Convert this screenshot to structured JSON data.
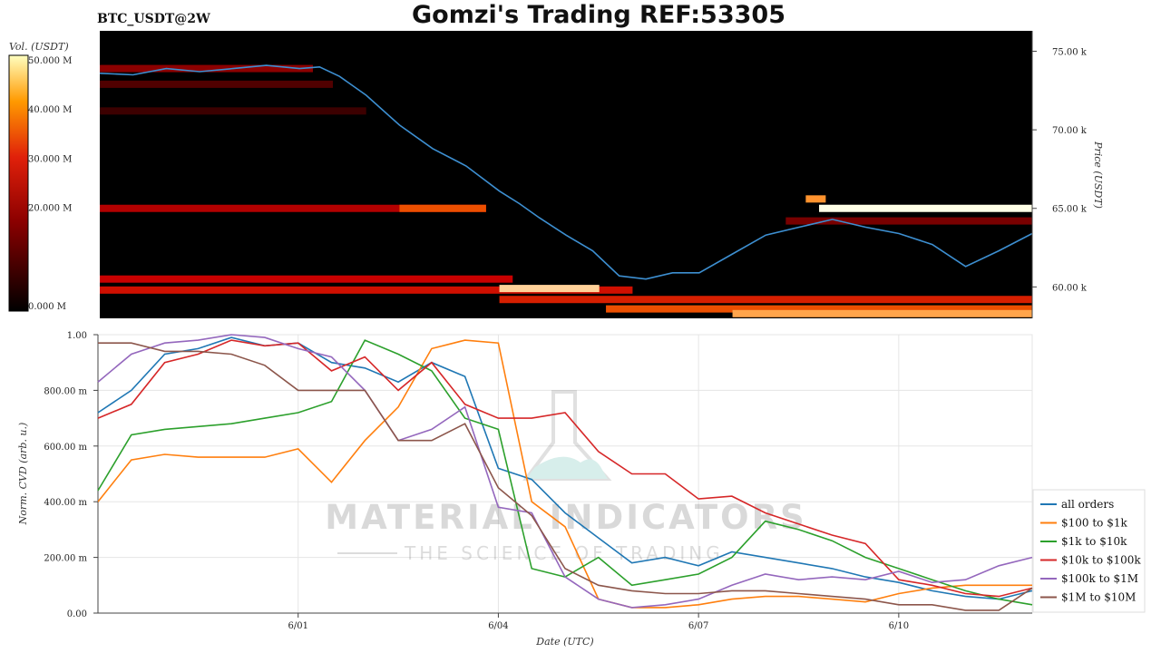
{
  "header": {
    "pair": "BTC_USDT@2W",
    "title": "Gomzi's Trading REF:53305"
  },
  "watermark": {
    "line1": "MATERIAL INDICATORS",
    "line2": "THE SCIENCE OF TRADING"
  },
  "colors": {
    "all_orders": "#1f77b4",
    "r100_1k": "#ff7f0e",
    "r1k_10k": "#2ca02c",
    "r10k_100k": "#d62728",
    "r100k_1m": "#9467bd",
    "r1m_10m": "#8c564b"
  },
  "chart_data": [
    {
      "type": "heatmap",
      "title": "Gomzi's Trading REF:53305",
      "colorbar_label": "Vol. (USDT)",
      "colorbar_ticks": [
        "0.000 M",
        "20.000 M",
        "30.000 M",
        "40.000 M",
        "50.000 M"
      ],
      "colorbar_range": [
        0,
        50
      ],
      "ylabel": "Price (USDT)",
      "yticks": [
        "60.00 k",
        "65.00 k",
        "70.00 k",
        "75.00 k"
      ],
      "ylim": [
        58000,
        76300
      ],
      "x_range_days": [
        0,
        14
      ],
      "price_series": {
        "x": [
          0,
          0.5,
          1,
          1.5,
          2,
          2.5,
          3,
          3.3,
          3.6,
          4,
          4.5,
          5,
          5.5,
          6,
          6.3,
          6.6,
          7,
          7.4,
          7.8,
          8.2,
          8.6,
          9,
          9.5,
          10,
          10.5,
          11,
          11.5,
          12,
          12.5,
          13,
          13.5,
          14
        ],
        "y": [
          73600,
          73500,
          73900,
          73700,
          73900,
          74100,
          73900,
          74000,
          73400,
          72200,
          70300,
          68800,
          67700,
          66100,
          65300,
          64400,
          63300,
          62300,
          60700,
          60500,
          60900,
          60900,
          62100,
          63300,
          63800,
          64300,
          63800,
          63400,
          62700,
          61300,
          62300,
          63400
        ]
      },
      "liquidity_bands": [
        {
          "price": 73900,
          "from": 0.0,
          "to": 3.2,
          "level": 14
        },
        {
          "price": 72900,
          "from": 0.0,
          "to": 3.5,
          "level": 8
        },
        {
          "price": 71200,
          "from": 0.0,
          "to": 4.0,
          "level": 6
        },
        {
          "price": 65000,
          "from": 0.0,
          "to": 5.8,
          "level": 18
        },
        {
          "price": 65000,
          "from": 4.5,
          "to": 5.8,
          "level": 30
        },
        {
          "price": 65600,
          "from": 10.6,
          "to": 10.9,
          "level": 38
        },
        {
          "price": 65000,
          "from": 10.8,
          "to": 14.0,
          "level": 50
        },
        {
          "price": 64200,
          "from": 10.3,
          "to": 14.0,
          "level": 12
        },
        {
          "price": 60500,
          "from": 0.0,
          "to": 6.2,
          "level": 20
        },
        {
          "price": 59800,
          "from": 0.0,
          "to": 8.0,
          "level": 22
        },
        {
          "price": 59900,
          "from": 6.0,
          "to": 7.5,
          "level": 45
        },
        {
          "price": 59200,
          "from": 6.0,
          "to": 14.0,
          "level": 24
        },
        {
          "price": 58600,
          "from": 7.6,
          "to": 14.0,
          "level": 30
        },
        {
          "price": 58300,
          "from": 9.5,
          "to": 14.0,
          "level": 40
        }
      ]
    },
    {
      "type": "line",
      "xlabel": "Date (UTC)",
      "ylabel": "Norm. CVD (arb. u.)",
      "xlim": [
        0,
        14
      ],
      "ylim": [
        0,
        1
      ],
      "xticks": [
        {
          "value": 3,
          "label": "6/01"
        },
        {
          "value": 6,
          "label": "6/04"
        },
        {
          "value": 9,
          "label": "6/07"
        },
        {
          "value": 12,
          "label": "6/10"
        }
      ],
      "yticks": [
        {
          "value": 0,
          "label": "0.00"
        },
        {
          "value": 0.2,
          "label": "200.00 m"
        },
        {
          "value": 0.4,
          "label": "400.00 m"
        },
        {
          "value": 0.6,
          "label": "600.00 m"
        },
        {
          "value": 0.8,
          "label": "800.00 m"
        },
        {
          "value": 1.0,
          "label": "1.00"
        }
      ],
      "grid": true,
      "legend_position": "right",
      "x": [
        0,
        0.5,
        1,
        1.5,
        2,
        2.5,
        3,
        3.5,
        4,
        4.5,
        5,
        5.5,
        6,
        6.5,
        7,
        7.5,
        8,
        8.5,
        9,
        9.5,
        10,
        10.5,
        11,
        11.5,
        12,
        12.5,
        13,
        13.5,
        14
      ],
      "series": [
        {
          "name": "all orders",
          "color_key": "all_orders",
          "values": [
            0.72,
            0.8,
            0.93,
            0.95,
            0.99,
            0.96,
            0.97,
            0.9,
            0.88,
            0.83,
            0.9,
            0.85,
            0.52,
            0.48,
            0.36,
            0.27,
            0.18,
            0.2,
            0.17,
            0.22,
            0.2,
            0.18,
            0.16,
            0.13,
            0.11,
            0.08,
            0.06,
            0.05,
            0.08
          ]
        },
        {
          "name": "$100 to $1k",
          "color_key": "r100_1k",
          "values": [
            0.4,
            0.55,
            0.57,
            0.56,
            0.56,
            0.56,
            0.59,
            0.47,
            0.62,
            0.74,
            0.95,
            0.98,
            0.97,
            0.4,
            0.31,
            0.05,
            0.02,
            0.02,
            0.03,
            0.05,
            0.06,
            0.06,
            0.05,
            0.04,
            0.07,
            0.09,
            0.1,
            0.1,
            0.1
          ]
        },
        {
          "name": "$1k to $10k",
          "color_key": "r1k_10k",
          "values": [
            0.44,
            0.64,
            0.66,
            0.67,
            0.68,
            0.7,
            0.72,
            0.76,
            0.98,
            0.93,
            0.87,
            0.7,
            0.66,
            0.16,
            0.13,
            0.2,
            0.1,
            0.12,
            0.14,
            0.2,
            0.33,
            0.3,
            0.26,
            0.2,
            0.16,
            0.12,
            0.08,
            0.05,
            0.03
          ]
        },
        {
          "name": "$10k to $100k",
          "color_key": "r10k_100k",
          "values": [
            0.7,
            0.75,
            0.9,
            0.93,
            0.98,
            0.96,
            0.97,
            0.87,
            0.92,
            0.8,
            0.9,
            0.75,
            0.7,
            0.7,
            0.72,
            0.58,
            0.5,
            0.5,
            0.41,
            0.42,
            0.36,
            0.32,
            0.28,
            0.25,
            0.12,
            0.1,
            0.07,
            0.06,
            0.09
          ]
        },
        {
          "name": "$100k to $1M",
          "color_key": "r100k_1m",
          "values": [
            0.83,
            0.93,
            0.97,
            0.98,
            1.0,
            0.99,
            0.95,
            0.92,
            0.8,
            0.62,
            0.66,
            0.74,
            0.38,
            0.36,
            0.13,
            0.05,
            0.02,
            0.03,
            0.05,
            0.1,
            0.14,
            0.12,
            0.13,
            0.12,
            0.15,
            0.11,
            0.12,
            0.17,
            0.2
          ]
        },
        {
          "name": "$1M to $10M",
          "color_key": "r1m_10m",
          "values": [
            0.97,
            0.97,
            0.94,
            0.94,
            0.93,
            0.89,
            0.8,
            0.8,
            0.8,
            0.62,
            0.62,
            0.68,
            0.45,
            0.35,
            0.16,
            0.1,
            0.08,
            0.07,
            0.07,
            0.08,
            0.08,
            0.07,
            0.06,
            0.05,
            0.03,
            0.03,
            0.01,
            0.01,
            0.09
          ]
        }
      ]
    }
  ]
}
